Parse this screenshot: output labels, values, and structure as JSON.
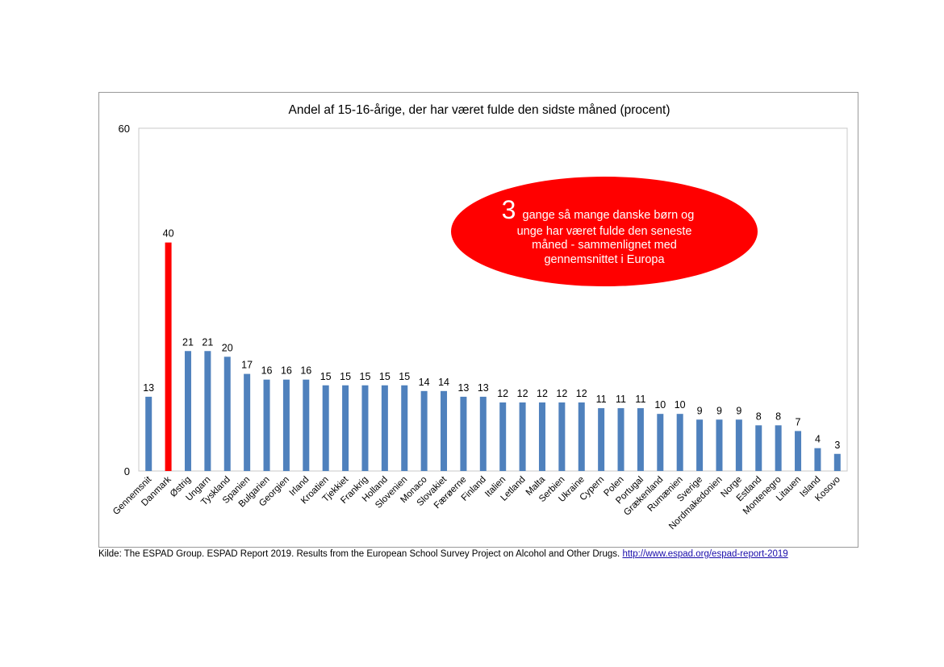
{
  "source": {
    "text": "Kilde: The ESPAD Group. ESPAD Report 2019. Results from the European School Survey Project on Alcohol and Other Drugs.",
    "link": "http://www.espad.org/espad-report-2019"
  },
  "callout": {
    "big_number": "3",
    "line1": "gange så mange danske børn og",
    "line2": "unge har været fulde den seneste",
    "line3": "måned - sammenlignet med",
    "line4": "gennemsnittet i Europa"
  },
  "colors": {
    "bar": "#4f81bd",
    "highlight": "#ff0000",
    "callout": "#ff0000"
  },
  "chart_data": {
    "type": "bar",
    "title": "Andel af 15-16-årige, der har været fulde den sidste måned (procent)",
    "xlabel": "",
    "ylabel": "",
    "ylim": [
      0,
      60
    ],
    "yticks": [
      0,
      60
    ],
    "grid": false,
    "highlight": "Danmark",
    "categories": [
      "Gennemsnit",
      "Danmark",
      "Østrig",
      "Ungarn",
      "Tyskland",
      "Spanien",
      "Bulgarien",
      "Georgien",
      "Irland",
      "Kroatien",
      "Tjekkiet",
      "Frankrig",
      "Holland",
      "Slovenien",
      "Monaco",
      "Slovakiet",
      "Færøerne",
      "Finland",
      "Italien",
      "Letland",
      "Malta",
      "Serbien",
      "Ukraine",
      "Cypern",
      "Polen",
      "Portugal",
      "Grækenland",
      "Rumænien",
      "Sverige",
      "Nordmakedonien",
      "Norge",
      "Estland",
      "Montenegro",
      "Litauen",
      "Island",
      "Kosovo"
    ],
    "values": [
      13,
      40,
      21,
      21,
      20,
      17,
      16,
      16,
      16,
      15,
      15,
      15,
      15,
      15,
      14,
      14,
      13,
      13,
      12,
      12,
      12,
      12,
      12,
      11,
      11,
      11,
      10,
      10,
      9,
      9,
      9,
      8,
      8,
      7,
      4,
      3
    ]
  }
}
